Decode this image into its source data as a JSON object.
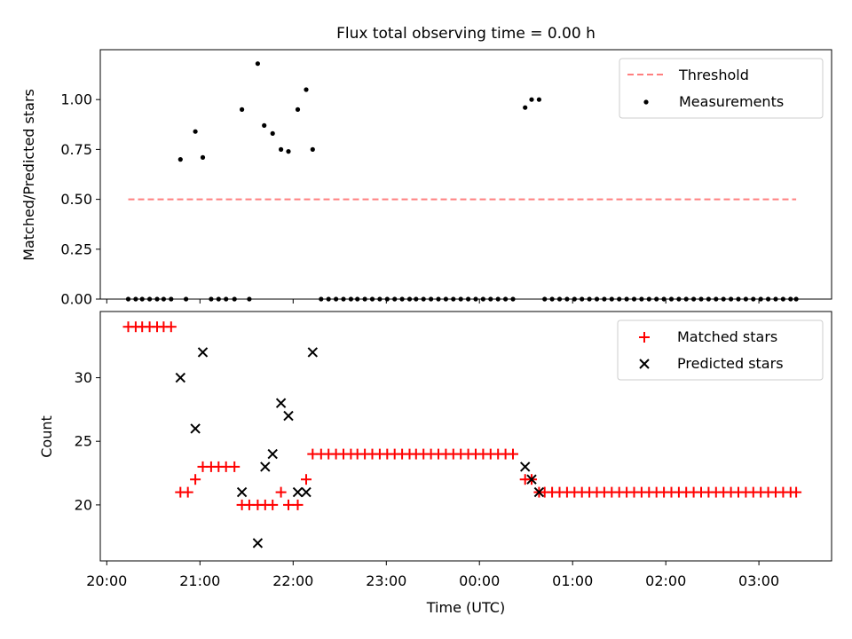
{
  "chart_data": [
    {
      "type": "scatter",
      "title": "Flux total observing time = 0.00 h",
      "ylabel": "Matched/Predicted stars",
      "xlim": [
        19.93,
        27.78
      ],
      "ylim": [
        0,
        1.25
      ],
      "y_ticks": [
        0.0,
        0.25,
        0.5,
        0.75,
        1.0
      ],
      "y_tick_labels": [
        "0.00",
        "0.25",
        "0.50",
        "0.75",
        "1.00"
      ],
      "legend_position": "upper right",
      "threshold": {
        "name": "Threshold",
        "y": 0.5,
        "x": [
          20.23,
          27.4
        ],
        "color": "#ff7f7f",
        "style": "dashed"
      },
      "series": [
        {
          "name": "Measurements",
          "color": "#000000",
          "marker": "dot",
          "x": [
            20.23,
            20.31,
            20.38,
            20.46,
            20.54,
            20.61,
            20.69,
            20.79,
            20.85,
            20.95,
            21.03,
            21.12,
            21.2,
            21.28,
            21.37,
            21.45,
            21.53,
            21.62,
            21.69,
            21.78,
            21.87,
            21.95,
            22.05,
            22.14,
            22.21,
            22.3,
            22.38,
            22.46,
            22.54,
            22.62,
            22.69,
            22.77,
            22.85,
            22.93,
            23.01,
            23.09,
            23.17,
            23.25,
            23.32,
            23.4,
            23.48,
            23.56,
            23.64,
            23.72,
            23.8,
            23.88,
            23.96,
            24.04,
            24.12,
            24.2,
            24.28,
            24.36,
            24.49,
            24.56,
            24.64,
            24.7,
            24.78,
            24.86,
            24.94,
            25.02,
            25.1,
            25.18,
            25.26,
            25.34,
            25.42,
            25.5,
            25.58,
            25.66,
            25.74,
            25.82,
            25.9,
            25.98,
            26.06,
            26.14,
            26.22,
            26.3,
            26.38,
            26.46,
            26.54,
            26.62,
            26.7,
            26.78,
            26.86,
            26.94,
            27.02,
            27.1,
            27.18,
            27.26,
            27.34,
            27.4
          ],
          "y": [
            0,
            0,
            0,
            0,
            0,
            0,
            0,
            0.7,
            0,
            0.84,
            0.71,
            0,
            0,
            0,
            0,
            0.95,
            0,
            1.18,
            0.87,
            0.83,
            0.75,
            0.74,
            0.95,
            1.05,
            0.75,
            0,
            0,
            0,
            0,
            0,
            0,
            0,
            0,
            0,
            0,
            0,
            0,
            0,
            0,
            0,
            0,
            0,
            0,
            0,
            0,
            0,
            0,
            0,
            0,
            0,
            0,
            0,
            0.96,
            1.0,
            1.0,
            0,
            0,
            0,
            0,
            0,
            0,
            0,
            0,
            0,
            0,
            0,
            0,
            0,
            0,
            0,
            0,
            0,
            0,
            0,
            0,
            0,
            0,
            0,
            0,
            0,
            0,
            0,
            0,
            0,
            0,
            0,
            0,
            0,
            0,
            0
          ]
        }
      ]
    },
    {
      "type": "scatter",
      "ylabel": "Count",
      "xlabel": "Time (UTC)",
      "xlim": [
        19.93,
        27.78
      ],
      "ylim": [
        15.6,
        35.2
      ],
      "y_ticks": [
        20,
        25,
        30
      ],
      "y_tick_labels": [
        "20",
        "25",
        "30"
      ],
      "x_ticks": [
        20,
        21,
        22,
        23,
        24,
        25,
        26,
        27
      ],
      "x_tick_labels": [
        "20:00",
        "21:00",
        "22:00",
        "23:00",
        "00:00",
        "01:00",
        "02:00",
        "03:00"
      ],
      "legend_position": "upper right",
      "series": [
        {
          "name": "Matched stars",
          "color": "#ff0000",
          "marker": "plus",
          "x": [
            20.23,
            20.31,
            20.38,
            20.46,
            20.54,
            20.61,
            20.69,
            20.79,
            20.87,
            20.95,
            21.03,
            21.12,
            21.2,
            21.28,
            21.37,
            21.45,
            21.53,
            21.62,
            21.7,
            21.78,
            21.87,
            21.95,
            22.05,
            22.14,
            22.21,
            22.3,
            22.38,
            22.46,
            22.54,
            22.62,
            22.69,
            22.77,
            22.85,
            22.93,
            23.01,
            23.09,
            23.17,
            23.25,
            23.32,
            23.4,
            23.48,
            23.56,
            23.64,
            23.72,
            23.8,
            23.88,
            23.96,
            24.04,
            24.12,
            24.2,
            24.28,
            24.36,
            24.49,
            24.56,
            24.64,
            24.7,
            24.78,
            24.86,
            24.94,
            25.02,
            25.1,
            25.18,
            25.26,
            25.34,
            25.42,
            25.5,
            25.58,
            25.66,
            25.74,
            25.82,
            25.9,
            25.98,
            26.06,
            26.14,
            26.22,
            26.3,
            26.38,
            26.46,
            26.54,
            26.62,
            26.7,
            26.78,
            26.86,
            26.94,
            27.02,
            27.1,
            27.18,
            27.26,
            27.34,
            27.4
          ],
          "y": [
            34,
            34,
            34,
            34,
            34,
            34,
            34,
            21,
            21,
            22,
            23,
            23,
            23,
            23,
            23,
            20,
            20,
            20,
            20,
            20,
            21,
            20,
            20,
            22,
            24,
            24,
            24,
            24,
            24,
            24,
            24,
            24,
            24,
            24,
            24,
            24,
            24,
            24,
            24,
            24,
            24,
            24,
            24,
            24,
            24,
            24,
            24,
            24,
            24,
            24,
            24,
            24,
            22,
            22,
            21,
            21,
            21,
            21,
            21,
            21,
            21,
            21,
            21,
            21,
            21,
            21,
            21,
            21,
            21,
            21,
            21,
            21,
            21,
            21,
            21,
            21,
            21,
            21,
            21,
            21,
            21,
            21,
            21,
            21,
            21,
            21,
            21,
            21,
            21,
            21
          ]
        },
        {
          "name": "Predicted stars",
          "color": "#000000",
          "marker": "x",
          "x": [
            20.79,
            20.95,
            21.03,
            21.45,
            21.62,
            21.7,
            21.78,
            21.87,
            21.95,
            22.05,
            22.14,
            22.21,
            24.49,
            24.56,
            24.64
          ],
          "y": [
            30,
            26,
            32,
            21,
            17,
            23,
            24,
            28,
            27,
            21,
            21,
            32,
            23,
            22,
            21
          ]
        }
      ]
    }
  ]
}
